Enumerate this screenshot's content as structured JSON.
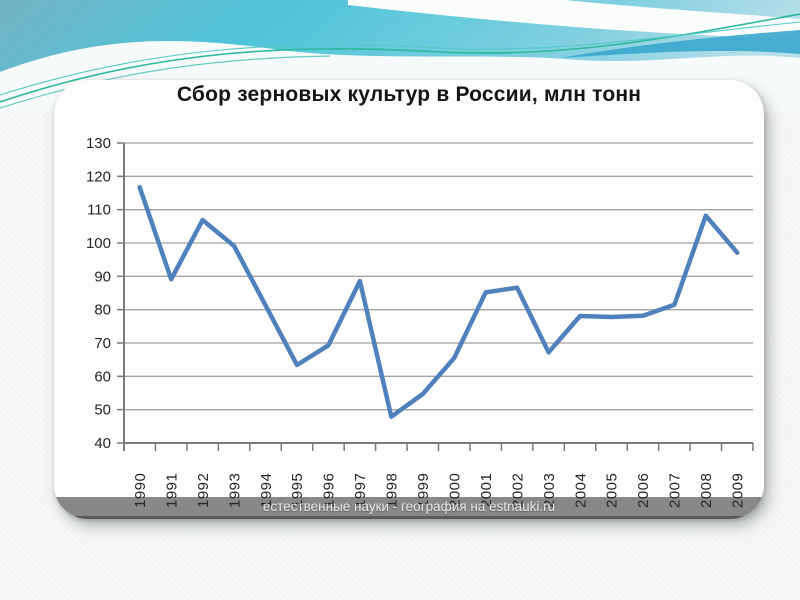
{
  "slide": {
    "background_color": "#f3f5f5",
    "header": {
      "gradient_colors": [
        "#74b3c5",
        "#4ec4d9",
        "#7fcfe0",
        "#b7dfe9"
      ],
      "wave_color": "#f7fafa",
      "accent_band_color": "#3aa7ce",
      "accent_line_colors": [
        "#2eb99e",
        "#54c8c6"
      ]
    }
  },
  "watermark": {
    "text": "естественные науки - география на estnauki.ru",
    "bar_color": "#7b7b7b",
    "text_color": "#e9ebeb"
  },
  "chart_data": {
    "type": "line",
    "title": "Сбор зерновых культур в России, млн тонн",
    "categories": [
      "1990",
      "1991",
      "1992",
      "1993",
      "1994",
      "1995",
      "1996",
      "1997",
      "1998",
      "1999",
      "2000",
      "2001",
      "2002",
      "2003",
      "2004",
      "2005",
      "2006",
      "2007",
      "2008",
      "2009"
    ],
    "values": [
      116.7,
      89.1,
      106.9,
      99.1,
      81.3,
      63.4,
      69.3,
      88.6,
      47.9,
      54.7,
      65.5,
      85.2,
      86.6,
      67.2,
      78.1,
      77.8,
      78.2,
      81.5,
      108.2,
      97.1
    ],
    "xlabel": "",
    "ylabel": "",
    "ylim": [
      40,
      130
    ],
    "yticks": [
      130,
      120,
      110,
      100,
      90,
      80,
      70,
      60,
      50,
      40
    ],
    "grid": true,
    "legend": "none",
    "line_color": "#4f81bd",
    "grid_color": "#a3a3a3",
    "axis_color": "#7a7a7a",
    "label_color": "#262626"
  }
}
